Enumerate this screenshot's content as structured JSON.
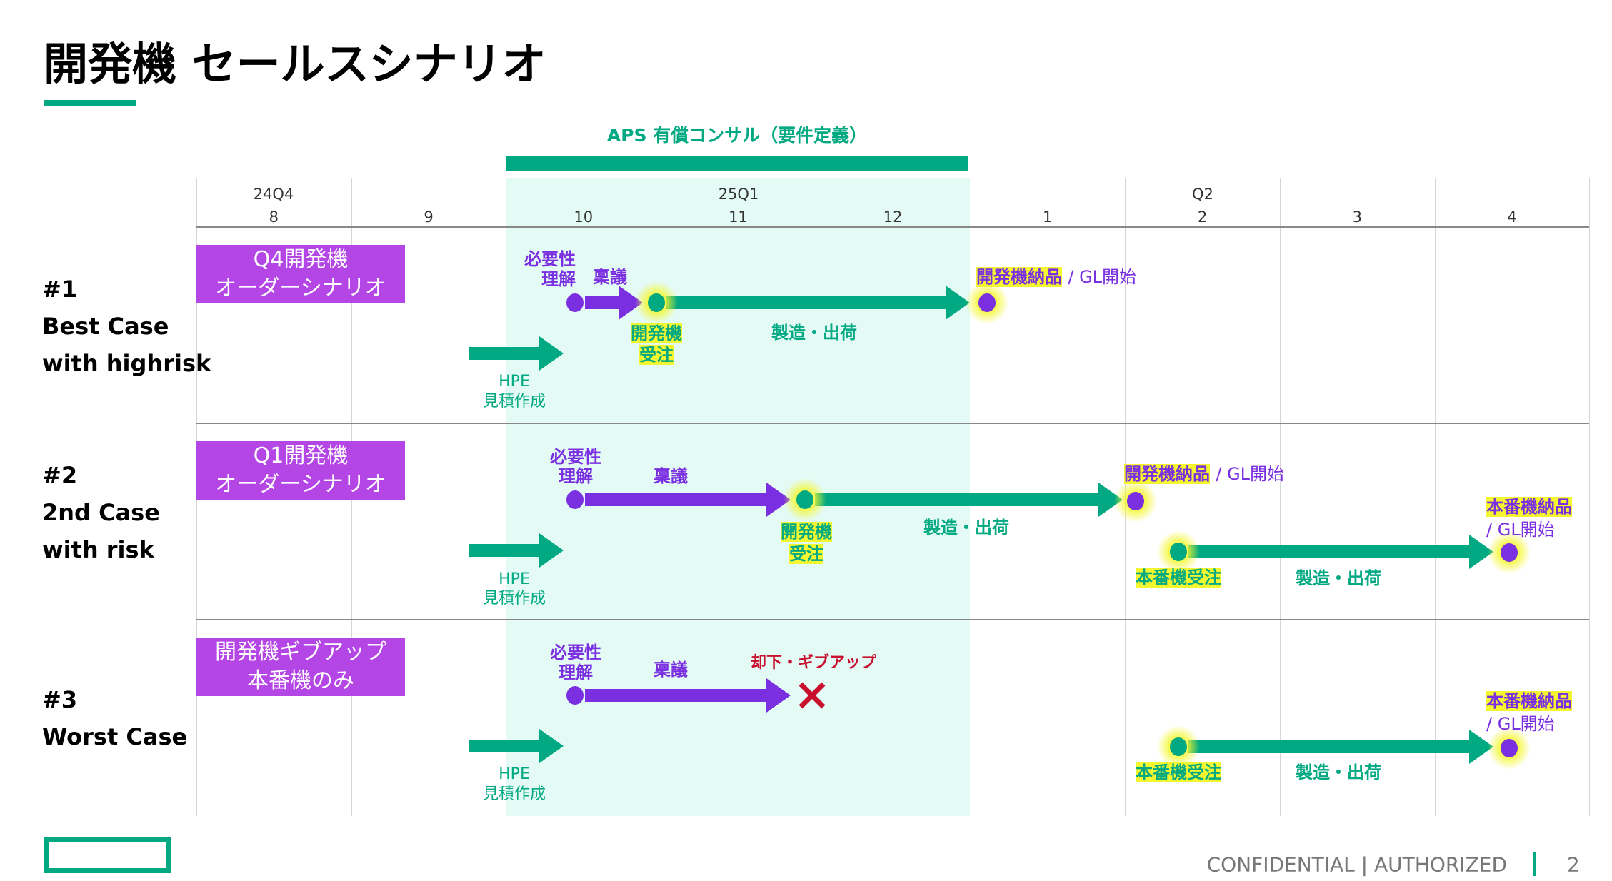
{
  "title": "開発機 セールスシナリオ",
  "header": {
    "consult_label": "APS 有償コンサル（要件定義）",
    "quarters": [
      "24Q4",
      "25Q1",
      "Q2"
    ],
    "months": [
      "8",
      "9",
      "10",
      "11",
      "12",
      "1",
      "2",
      "3",
      "4"
    ]
  },
  "colors": {
    "green": "#01a982",
    "purple": "#7a2fe0",
    "box": "#b546e6",
    "highlight": "#f4f730",
    "reject": "#c8102e",
    "shade": "#e4fbf5"
  },
  "scenarios": [
    {
      "number": "#1",
      "name": "Best Case",
      "subtitle": "with highrisk",
      "box_line1": "Q4開発機",
      "box_line2": "オーダーシナリオ",
      "need_l1": "必要性",
      "need_l2": "理解",
      "approval": "稟議",
      "dev_order_l1": "開発機",
      "dev_order_l2": "受注",
      "manufacturing": "製造・出荷",
      "dev_delivery": "開発機納品",
      "gl_start": "/ GL開始",
      "hpe": "HPE",
      "estimate": "見積作成"
    },
    {
      "number": "#2",
      "name": "2nd Case",
      "subtitle": "with risk",
      "box_line1": "Q1開発機",
      "box_line2": "オーダーシナリオ",
      "need_l1": "必要性",
      "need_l2": "理解",
      "approval": "稟議",
      "dev_order_l1": "開発機",
      "dev_order_l2": "受注",
      "manufacturing": "製造・出荷",
      "dev_delivery": "開発機納品",
      "gl_start": "/ GL開始",
      "prod_order": "本番機受注",
      "prod_manufacturing": "製造・出荷",
      "prod_delivery": "本番機納品",
      "prod_gl_start": "/ GL開始",
      "hpe": "HPE",
      "estimate": "見積作成"
    },
    {
      "number": "#3",
      "name": "Worst Case",
      "box_line1": "開発機ギブアップ",
      "box_line2": "本番機のみ",
      "need_l1": "必要性",
      "need_l2": "理解",
      "approval": "稟議",
      "rejected": "却下・ギブアップ",
      "prod_order": "本番機受注",
      "prod_manufacturing": "製造・出荷",
      "prod_delivery": "本番機納品",
      "prod_gl_start": "/ GL開始",
      "hpe": "HPE",
      "estimate": "見積作成",
      "reject_icon": "x-mark-icon"
    }
  ],
  "footer": {
    "confidential": "CONFIDENTIAL | AUTHORIZED",
    "page": "2"
  }
}
